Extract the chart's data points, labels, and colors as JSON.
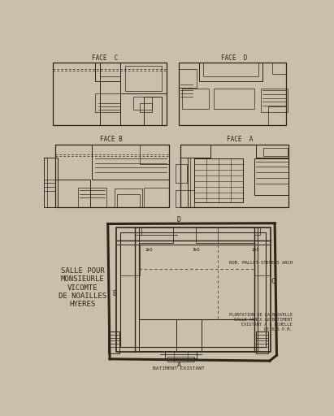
{
  "bg_color": "#c9bfaa",
  "draw_color": "#2d2518",
  "title": "SALLE POUR\nMONSIEURLE\nVICOMTE\nDE NOAILLES\nHYERES",
  "subtitle_right": "ROB. MALLET-STEVENS ARCH",
  "note_right": "PLANTATION DE LA NOUVELLE\nSALLE ANNEX AU BATIMENT\nEXISTANT A L ECHELLE\nDE 0,5 P.M.",
  "label_face_c": "FACE  C",
  "label_face_d": "FACE  D",
  "label_face_b": "FACE B",
  "label_face_a": "FACE  A",
  "label_d": "D",
  "label_a": "A",
  "label_b": "B",
  "label_c": "C",
  "label_batiment": "BATIMENT EXISTANT"
}
